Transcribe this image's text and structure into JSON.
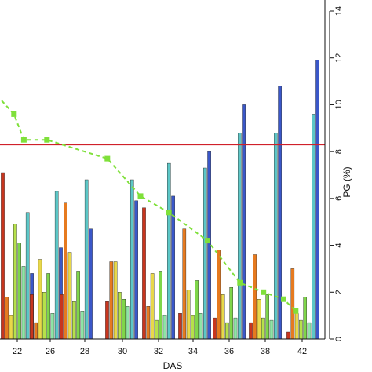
{
  "chart_data": {
    "type": "bar",
    "xlabel": "DAS",
    "ylabel": "PG (%)",
    "categories": [
      "22",
      "26",
      "28",
      "30",
      "32",
      "34",
      "36",
      "38",
      "42"
    ],
    "y_ticks": [
      0,
      2,
      4,
      6,
      8,
      10,
      12,
      14
    ],
    "ylim": [
      0,
      14
    ],
    "y_axis_side": "right",
    "bars_per_group": 8,
    "bar_colors": [
      "#c8351e",
      "#e67a1f",
      "#e8d84a",
      "#b6e14a",
      "#7fd64a",
      "#8fe4a6",
      "#5cc7c7",
      "#3a57c9"
    ],
    "groups": [
      {
        "label": "22",
        "values": [
          7.1,
          1.8,
          1.0,
          4.9,
          4.1,
          3.1,
          5.4,
          2.8
        ]
      },
      {
        "label": "26",
        "values": [
          1.9,
          0.7,
          3.4,
          2.0,
          2.8,
          1.1,
          6.3,
          3.9
        ]
      },
      {
        "label": "28",
        "values": [
          1.9,
          5.8,
          3.7,
          1.6,
          2.9,
          1.2,
          6.8,
          4.7
        ]
      },
      {
        "label": "30",
        "values": [
          1.6,
          3.3,
          3.3,
          2.0,
          1.7,
          1.4,
          6.8,
          5.9
        ]
      },
      {
        "label": "32",
        "values": [
          5.6,
          1.4,
          2.8,
          0.8,
          2.9,
          1.0,
          7.5,
          6.1
        ]
      },
      {
        "label": "34",
        "values": [
          1.1,
          4.7,
          2.1,
          1.0,
          2.5,
          1.1,
          7.3,
          8.0
        ]
      },
      {
        "label": "36",
        "values": [
          0.9,
          3.8,
          1.9,
          0.7,
          2.2,
          0.9,
          8.8,
          10.0
        ]
      },
      {
        "label": "38",
        "values": [
          0.7,
          3.6,
          1.7,
          0.9,
          1.9,
          0.8,
          8.8,
          10.8
        ]
      },
      {
        "label": "42",
        "values": [
          0.3,
          3.0,
          1.1,
          0.8,
          1.8,
          0.7,
          9.6,
          11.9
        ]
      }
    ],
    "reference_line": {
      "y": 8.3,
      "color": "#d0202a"
    },
    "trend_series": {
      "color": "#7fe03a",
      "style": "dashed-with-square-markers",
      "x": [
        21.6,
        22.8,
        25.6,
        29.2,
        31.0,
        32.6,
        34.8,
        36.6,
        37.9,
        40.0,
        41.3
      ],
      "y": [
        9.6,
        8.5,
        8.5,
        7.7,
        6.1,
        5.4,
        4.2,
        2.4,
        2.0,
        1.7,
        1.2
      ]
    }
  }
}
